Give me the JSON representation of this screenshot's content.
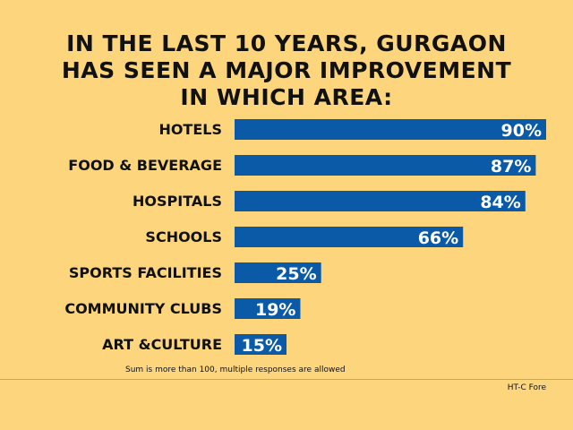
{
  "chart_data": {
    "type": "bar",
    "orientation": "horizontal",
    "title_lines": [
      "IN THE LAST 10 YEARS, GURGAON",
      "HAS SEEN A MAJOR IMPROVEMENT",
      "IN WHICH AREA:"
    ],
    "categories": [
      "HOTELS",
      "FOOD & BEVERAGE",
      "HOSPITALS",
      "SCHOOLS",
      "SPORTS FACILITIES",
      "COMMUNITY CLUBS",
      "ART &CULTURE"
    ],
    "values": [
      90,
      87,
      84,
      66,
      25,
      19,
      15
    ],
    "data_labels": [
      "90%",
      "87%",
      "84%",
      "66%",
      "25%",
      "19%",
      "15%"
    ],
    "unit": "%",
    "xlim": [
      0,
      90
    ],
    "grid": false,
    "bar_color": "#0b5aa8",
    "background_color": "#fcd57c",
    "footnote": "Sum is more than 100, multiple responses are allowed",
    "credit": "HT-C Fore"
  }
}
